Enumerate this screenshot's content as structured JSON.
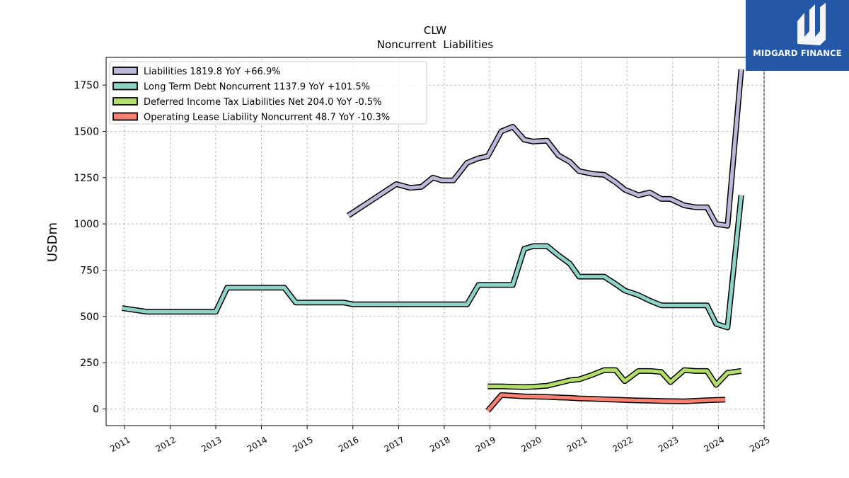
{
  "chart_data": {
    "type": "line",
    "title": "CLW",
    "subtitle": "Noncurrent  Liabilities",
    "ylabel": "USDm",
    "xlabel": "",
    "xlim": [
      2010.6,
      2025.0
    ],
    "ylim": [
      -90,
      1900
    ],
    "x_ticks": [
      "2011",
      "2012",
      "2013",
      "2014",
      "2015",
      "2016",
      "2017",
      "2018",
      "2019",
      "2020",
      "2021",
      "2022",
      "2023",
      "2024",
      "2025"
    ],
    "y_ticks": [
      {
        "value": 0,
        "label": "0"
      },
      {
        "value": 250,
        "label": "250"
      },
      {
        "value": 500,
        "label": "500"
      },
      {
        "value": 750,
        "label": "750"
      },
      {
        "value": 1000,
        "label": "1000"
      },
      {
        "value": 1250,
        "label": "1250"
      },
      {
        "value": 1500,
        "label": "1500"
      },
      {
        "value": 1750,
        "label": "1750"
      }
    ],
    "grid": true,
    "legend_position": "top-left",
    "series": [
      {
        "name": "Liabilities  1819.8 YoY +66.9%",
        "color": "#bcb8d8",
        "points": [
          [
            2015.9,
            1045
          ],
          [
            2016.95,
            1215
          ],
          [
            2017.25,
            1195
          ],
          [
            2017.5,
            1200
          ],
          [
            2017.75,
            1250
          ],
          [
            2017.95,
            1235
          ],
          [
            2018.2,
            1235
          ],
          [
            2018.5,
            1330
          ],
          [
            2018.75,
            1355
          ],
          [
            2018.95,
            1365
          ],
          [
            2019.25,
            1500
          ],
          [
            2019.5,
            1525
          ],
          [
            2019.75,
            1455
          ],
          [
            2019.95,
            1445
          ],
          [
            2020.25,
            1450
          ],
          [
            2020.5,
            1370
          ],
          [
            2020.75,
            1335
          ],
          [
            2020.95,
            1285
          ],
          [
            2021.25,
            1270
          ],
          [
            2021.5,
            1265
          ],
          [
            2021.75,
            1225
          ],
          [
            2021.95,
            1185
          ],
          [
            2022.25,
            1155
          ],
          [
            2022.5,
            1170
          ],
          [
            2022.75,
            1135
          ],
          [
            2022.95,
            1135
          ],
          [
            2023.25,
            1100
          ],
          [
            2023.5,
            1090
          ],
          [
            2023.75,
            1090
          ],
          [
            2023.95,
            1000
          ],
          [
            2024.2,
            990
          ],
          [
            2024.5,
            1835
          ]
        ]
      },
      {
        "name": "Long Term Debt Noncurrent  1137.9 YoY +101.5%",
        "color": "#8dd3c7",
        "points": [
          [
            2010.95,
            545
          ],
          [
            2011.5,
            525
          ],
          [
            2012.0,
            525
          ],
          [
            2012.5,
            525
          ],
          [
            2013.0,
            525
          ],
          [
            2013.25,
            655
          ],
          [
            2013.5,
            655
          ],
          [
            2014.0,
            655
          ],
          [
            2014.5,
            655
          ],
          [
            2014.75,
            575
          ],
          [
            2015.0,
            575
          ],
          [
            2015.5,
            575
          ],
          [
            2015.8,
            575
          ],
          [
            2016.0,
            565
          ],
          [
            2016.5,
            565
          ],
          [
            2017.0,
            565
          ],
          [
            2017.5,
            565
          ],
          [
            2018.0,
            565
          ],
          [
            2018.5,
            565
          ],
          [
            2018.75,
            670
          ],
          [
            2019.0,
            670
          ],
          [
            2019.25,
            670
          ],
          [
            2019.5,
            670
          ],
          [
            2019.75,
            865
          ],
          [
            2019.95,
            880
          ],
          [
            2020.25,
            880
          ],
          [
            2020.5,
            830
          ],
          [
            2020.75,
            785
          ],
          [
            2020.95,
            715
          ],
          [
            2021.25,
            715
          ],
          [
            2021.5,
            715
          ],
          [
            2021.75,
            675
          ],
          [
            2021.95,
            640
          ],
          [
            2022.25,
            615
          ],
          [
            2022.5,
            585
          ],
          [
            2022.75,
            560
          ],
          [
            2022.95,
            560
          ],
          [
            2023.25,
            560
          ],
          [
            2023.5,
            560
          ],
          [
            2023.75,
            560
          ],
          [
            2023.95,
            460
          ],
          [
            2024.2,
            440
          ],
          [
            2024.5,
            1155
          ]
        ]
      },
      {
        "name": "Deferred Income Tax Liabilities Net  204.0 YoY -0.5%",
        "color": "#b3de69",
        "points": [
          [
            2018.95,
            122
          ],
          [
            2019.25,
            122
          ],
          [
            2019.5,
            120
          ],
          [
            2019.75,
            118
          ],
          [
            2019.95,
            120
          ],
          [
            2020.25,
            125
          ],
          [
            2020.5,
            140
          ],
          [
            2020.75,
            155
          ],
          [
            2020.95,
            160
          ],
          [
            2021.25,
            185
          ],
          [
            2021.5,
            210
          ],
          [
            2021.75,
            210
          ],
          [
            2021.95,
            150
          ],
          [
            2022.25,
            205
          ],
          [
            2022.5,
            205
          ],
          [
            2022.75,
            200
          ],
          [
            2022.95,
            145
          ],
          [
            2023.25,
            210
          ],
          [
            2023.5,
            205
          ],
          [
            2023.75,
            205
          ],
          [
            2023.95,
            130
          ],
          [
            2024.2,
            195
          ],
          [
            2024.5,
            205
          ]
        ]
      },
      {
        "name": "Operating Lease Liability Noncurrent  48.7 YoY -10.3%",
        "color": "#fb8072",
        "points": [
          [
            2018.95,
            -10
          ],
          [
            2019.25,
            75
          ],
          [
            2019.5,
            72
          ],
          [
            2019.75,
            68
          ],
          [
            2019.95,
            67
          ],
          [
            2020.25,
            65
          ],
          [
            2020.5,
            62
          ],
          [
            2020.75,
            60
          ],
          [
            2020.95,
            57
          ],
          [
            2021.25,
            55
          ],
          [
            2021.5,
            52
          ],
          [
            2021.75,
            50
          ],
          [
            2021.95,
            48
          ],
          [
            2022.25,
            46
          ],
          [
            2022.5,
            45
          ],
          [
            2022.75,
            43
          ],
          [
            2022.95,
            42
          ],
          [
            2023.25,
            41
          ],
          [
            2023.5,
            44
          ],
          [
            2023.75,
            47
          ],
          [
            2023.95,
            49
          ],
          [
            2024.15,
            50
          ]
        ]
      }
    ]
  },
  "brand": {
    "name": "MIDGARD FINANCE",
    "logo_mark": "M",
    "logo_bg": "#2557a7"
  }
}
